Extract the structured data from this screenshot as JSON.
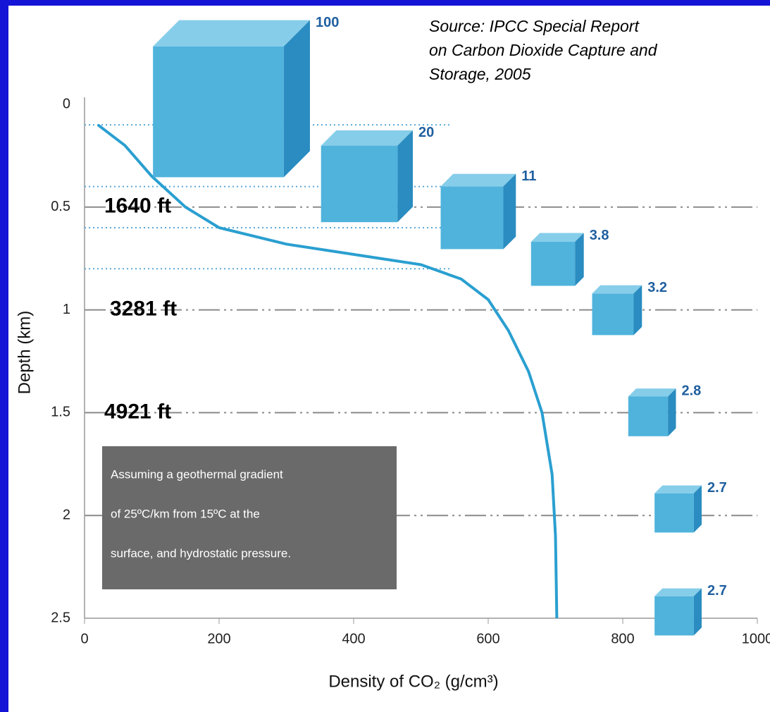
{
  "chart_data": {
    "type": "line",
    "source_lines": [
      "Source: IPCC Special Report",
      "on Carbon Dioxide Capture and",
      "Storage, 2005"
    ],
    "x_label": "Density of CO₂ (g/cm³)",
    "y_label": "Depth (km)",
    "x": [
      20,
      60,
      100,
      150,
      200,
      300,
      400,
      500,
      560,
      600,
      630,
      660,
      680,
      695,
      700,
      702
    ],
    "values": [
      0.1,
      0.2,
      0.35,
      0.5,
      0.6,
      0.68,
      0.73,
      0.78,
      0.85,
      0.95,
      1.1,
      1.3,
      1.5,
      1.8,
      2.1,
      2.5
    ],
    "color": "#2a9fd0",
    "xlim": [
      0,
      1000
    ],
    "xticks": [
      0,
      200,
      400,
      600,
      800,
      1000
    ],
    "ylim": [
      0,
      2.5
    ],
    "yticks": [
      0,
      0.5,
      1,
      1.5,
      2,
      2.5
    ],
    "y_inverted": true,
    "grid": true,
    "reference_depths": [
      0.1,
      0.4,
      0.6,
      0.8
    ],
    "cube_volumes": [
      100,
      20,
      11,
      3.8,
      3.2,
      2.8,
      2.7,
      2.7
    ],
    "depth_annotations": [
      {
        "value": 0.5,
        "label": "1640 ft"
      },
      {
        "value": 1,
        "label": "3281 ft"
      },
      {
        "value": 1.5,
        "label": "4921 ft"
      }
    ],
    "note_lines": [
      "Assuming a geothermal gradient",
      "of 25ºC/km from 15ºC at the",
      "surface, and hydrostatic pressure."
    ]
  }
}
